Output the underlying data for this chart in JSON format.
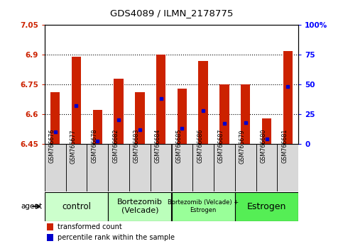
{
  "title": "GDS4089 / ILMN_2178775",
  "samples": [
    "GSM766676",
    "GSM766677",
    "GSM766678",
    "GSM766682",
    "GSM766683",
    "GSM766684",
    "GSM766685",
    "GSM766686",
    "GSM766687",
    "GSM766679",
    "GSM766680",
    "GSM766681"
  ],
  "transformed_counts": [
    6.71,
    6.89,
    6.62,
    6.78,
    6.71,
    6.9,
    6.73,
    6.87,
    6.75,
    6.75,
    6.58,
    6.92
  ],
  "percentile_ranks": [
    10,
    32,
    2,
    20,
    12,
    38,
    13,
    28,
    17,
    18,
    4,
    48
  ],
  "ylim_left": [
    6.45,
    7.05
  ],
  "ylim_right": [
    0,
    100
  ],
  "yticks_left": [
    6.45,
    6.6,
    6.75,
    6.9,
    7.05
  ],
  "yticks_right": [
    0,
    25,
    50,
    75,
    100
  ],
  "ytick_labels_left": [
    "6.45",
    "6.6",
    "6.75",
    "6.9",
    "7.05"
  ],
  "ytick_labels_right": [
    "0",
    "25",
    "50",
    "75",
    "100%"
  ],
  "bar_color": "#cc2200",
  "dot_color": "#0000cc",
  "bar_bottom": 6.45,
  "group_configs": [
    {
      "start": 0,
      "end": 2,
      "label": "control",
      "color": "#ccffcc",
      "fontsize": 8.5
    },
    {
      "start": 3,
      "end": 5,
      "label": "Bortezomib\n(Velcade)",
      "color": "#bbffbb",
      "fontsize": 8.0
    },
    {
      "start": 6,
      "end": 8,
      "label": "Bortezomib (Velcade) +\nEstrogen",
      "color": "#99ff99",
      "fontsize": 6.0
    },
    {
      "start": 9,
      "end": 11,
      "label": "Estrogen",
      "color": "#55ee55",
      "fontsize": 9.0
    }
  ],
  "agent_label": "agent",
  "legend_items": [
    {
      "color": "#cc2200",
      "label": "transformed count"
    },
    {
      "color": "#0000cc",
      "label": "percentile rank within the sample"
    }
  ],
  "background_color": "#ffffff",
  "plot_bg": "#ffffff",
  "tick_color_left": "#cc2200",
  "tick_color_right": "#0000ff",
  "sample_box_color": "#d8d8d8",
  "grid_yticks": [
    6.6,
    6.75,
    6.9
  ]
}
